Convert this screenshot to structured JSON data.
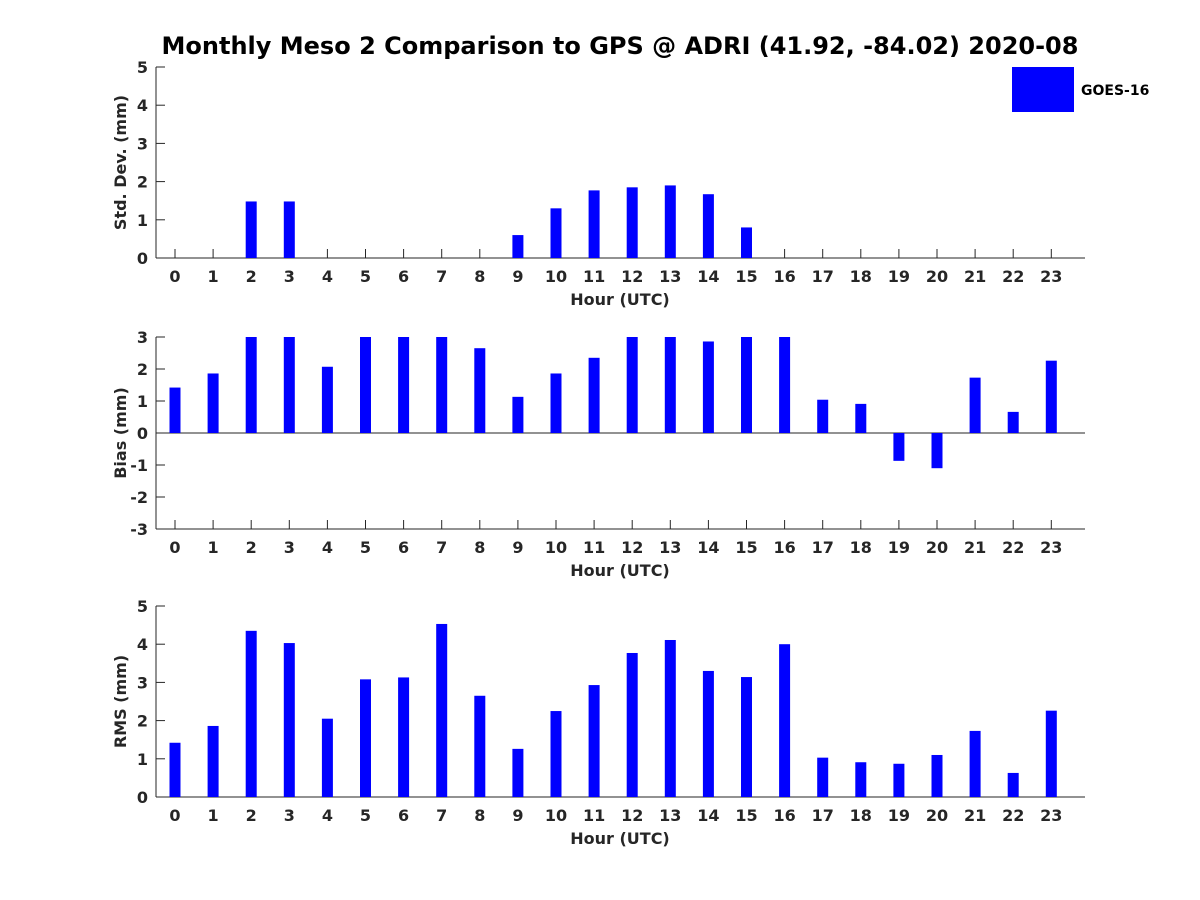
{
  "title": "Monthly Meso 2 Comparison to GPS @ ADRI (41.92, -84.02) 2020-08",
  "legend": {
    "label": "GOES-16",
    "color": "#0000ff"
  },
  "chart_data": [
    {
      "type": "bar",
      "xlabel": "Hour (UTC)",
      "ylabel": "Std. Dev. (mm)",
      "ylim": [
        0,
        5
      ],
      "yticks": [
        0,
        1,
        2,
        3,
        4,
        5
      ],
      "categories": [
        "0",
        "1",
        "2",
        "3",
        "4",
        "5",
        "6",
        "7",
        "8",
        "9",
        "10",
        "11",
        "12",
        "13",
        "14",
        "15",
        "16",
        "17",
        "18",
        "19",
        "20",
        "21",
        "22",
        "23"
      ],
      "series": [
        {
          "name": "GOES-16",
          "values": [
            0,
            0,
            1.48,
            1.48,
            0,
            0,
            0,
            0,
            0,
            0.6,
            1.3,
            1.77,
            1.85,
            1.9,
            1.67,
            0.8,
            0,
            0,
            0,
            0,
            0,
            0,
            0,
            0
          ]
        }
      ],
      "grid": false
    },
    {
      "type": "bar",
      "xlabel": "Hour (UTC)",
      "ylabel": "Bias (mm)",
      "ylim": [
        -3,
        3
      ],
      "yticks": [
        -3,
        -2,
        -1,
        0,
        1,
        2,
        3
      ],
      "categories": [
        "0",
        "1",
        "2",
        "3",
        "4",
        "5",
        "6",
        "7",
        "8",
        "9",
        "10",
        "11",
        "12",
        "13",
        "14",
        "15",
        "16",
        "17",
        "18",
        "19",
        "20",
        "21",
        "22",
        "23"
      ],
      "series": [
        {
          "name": "GOES-16",
          "values": [
            1.42,
            1.86,
            3.0,
            3.0,
            2.07,
            3.0,
            3.0,
            3.0,
            2.65,
            1.13,
            1.86,
            2.35,
            3.0,
            3.0,
            2.86,
            3.0,
            3.0,
            1.04,
            0.91,
            -0.87,
            -1.1,
            1.73,
            0.66,
            2.26
          ]
        }
      ],
      "grid": false
    },
    {
      "type": "bar",
      "xlabel": "Hour (UTC)",
      "ylabel": "RMS (mm)",
      "ylim": [
        0,
        5
      ],
      "yticks": [
        0,
        1,
        2,
        3,
        4,
        5
      ],
      "categories": [
        "0",
        "1",
        "2",
        "3",
        "4",
        "5",
        "6",
        "7",
        "8",
        "9",
        "10",
        "11",
        "12",
        "13",
        "14",
        "15",
        "16",
        "17",
        "18",
        "19",
        "20",
        "21",
        "22",
        "23"
      ],
      "series": [
        {
          "name": "GOES-16",
          "values": [
            1.42,
            1.86,
            4.35,
            4.03,
            2.05,
            3.08,
            3.13,
            4.53,
            2.65,
            1.26,
            2.25,
            2.93,
            3.77,
            4.11,
            3.3,
            3.14,
            4.0,
            1.03,
            0.91,
            0.87,
            1.1,
            1.73,
            0.63,
            2.26
          ]
        }
      ],
      "grid": false
    }
  ]
}
